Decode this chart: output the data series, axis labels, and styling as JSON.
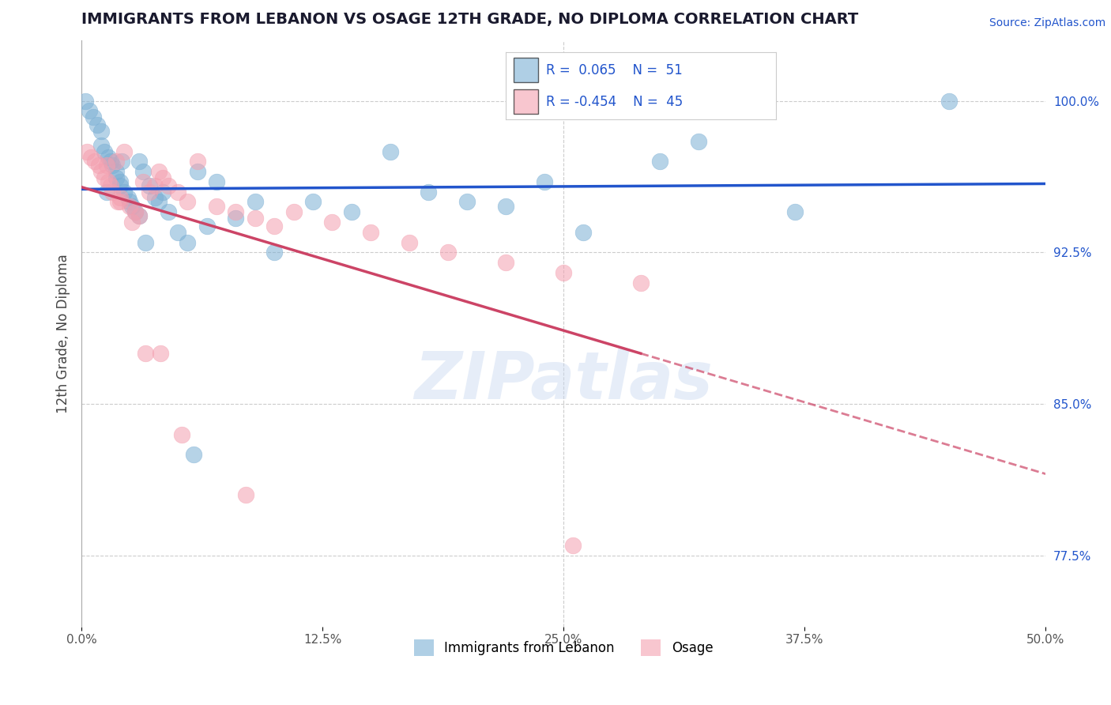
{
  "title": "IMMIGRANTS FROM LEBANON VS OSAGE 12TH GRADE, NO DIPLOMA CORRELATION CHART",
  "source": "Source: ZipAtlas.com",
  "ylabel": "12th Grade, No Diploma",
  "x_min": 0.0,
  "x_max": 50.0,
  "y_min": 74.0,
  "y_max": 103.0,
  "y_ticks": [
    77.5,
    85.0,
    92.5,
    100.0
  ],
  "x_ticks": [
    0.0,
    12.5,
    25.0,
    37.5,
    50.0
  ],
  "legend_labels": [
    "Immigrants from Lebanon",
    "Osage"
  ],
  "R_blue": 0.065,
  "N_blue": 51,
  "R_pink": -0.454,
  "N_pink": 45,
  "blue_color": "#7bafd4",
  "pink_color": "#f4a0b0",
  "blue_line_color": "#2255cc",
  "pink_line_color": "#cc4466",
  "watermark": "ZIPatlas",
  "blue_scatter_x": [
    0.2,
    0.4,
    0.6,
    0.8,
    1.0,
    1.0,
    1.2,
    1.4,
    1.5,
    1.6,
    1.8,
    1.8,
    2.0,
    2.0,
    2.2,
    2.4,
    2.5,
    2.6,
    2.8,
    3.0,
    3.0,
    3.2,
    3.5,
    3.8,
    4.0,
    4.5,
    5.0,
    5.5,
    6.0,
    6.5,
    7.0,
    8.0,
    9.0,
    10.0,
    12.0,
    14.0,
    16.0,
    18.0,
    20.0,
    22.0,
    24.0,
    26.0,
    30.0,
    32.0,
    37.0,
    45.0,
    1.3,
    2.1,
    3.3,
    4.2,
    5.8
  ],
  "blue_scatter_y": [
    100.0,
    99.5,
    99.2,
    98.8,
    98.5,
    97.8,
    97.5,
    97.2,
    97.0,
    96.8,
    96.5,
    96.2,
    96.0,
    95.8,
    95.5,
    95.2,
    95.0,
    94.8,
    94.5,
    94.3,
    97.0,
    96.5,
    95.8,
    95.2,
    95.0,
    94.5,
    93.5,
    93.0,
    96.5,
    93.8,
    96.0,
    94.2,
    95.0,
    92.5,
    95.0,
    94.5,
    97.5,
    95.5,
    95.0,
    94.8,
    96.0,
    93.5,
    97.0,
    98.0,
    94.5,
    100.0,
    95.5,
    97.0,
    93.0,
    95.5,
    82.5
  ],
  "pink_scatter_x": [
    0.3,
    0.5,
    0.7,
    0.9,
    1.0,
    1.2,
    1.4,
    1.5,
    1.6,
    1.8,
    2.0,
    2.0,
    2.2,
    2.5,
    2.8,
    3.0,
    3.2,
    3.5,
    3.8,
    4.0,
    4.2,
    4.5,
    5.0,
    5.5,
    6.0,
    7.0,
    8.0,
    9.0,
    10.0,
    11.0,
    13.0,
    15.0,
    17.0,
    19.0,
    22.0,
    25.0,
    29.0,
    1.3,
    1.9,
    2.6,
    3.3,
    4.1,
    5.2,
    8.5,
    25.5
  ],
  "pink_scatter_y": [
    97.5,
    97.2,
    97.0,
    96.8,
    96.5,
    96.2,
    96.0,
    95.8,
    95.5,
    97.0,
    95.2,
    95.0,
    97.5,
    94.8,
    94.5,
    94.3,
    96.0,
    95.5,
    95.8,
    96.5,
    96.2,
    95.8,
    95.5,
    95.0,
    97.0,
    94.8,
    94.5,
    94.2,
    93.8,
    94.5,
    94.0,
    93.5,
    93.0,
    92.5,
    92.0,
    91.5,
    91.0,
    96.8,
    95.0,
    94.0,
    87.5,
    87.5,
    83.5,
    80.5,
    78.0
  ],
  "pink_line_x_end": 29.0
}
